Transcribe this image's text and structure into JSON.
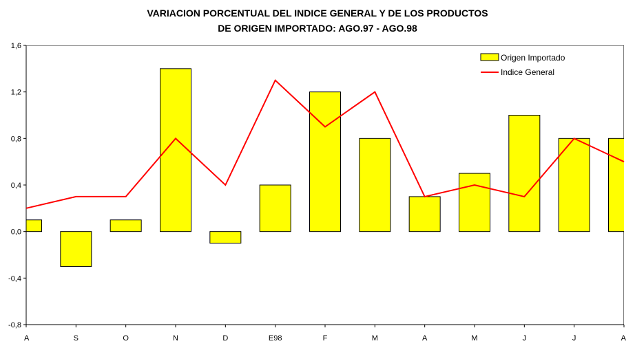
{
  "chart_data": {
    "type": "bar",
    "title_line1": "VARIACION PORCENTUAL DEL INDICE GENERAL Y DE LOS PRODUCTOS",
    "title_line2": "DE ORIGEN IMPORTADO: AGO.97 - AGO.98",
    "categories": [
      "A",
      "S",
      "O",
      "N",
      "D",
      "E98",
      "F",
      "M",
      "A",
      "M",
      "J",
      "J",
      "A"
    ],
    "ylim": [
      -0.8,
      1.6
    ],
    "yticks": [
      "-0,8",
      "-0,4",
      "0,0",
      "0,4",
      "0,8",
      "1,2",
      "1,6"
    ],
    "ytick_values": [
      -0.8,
      -0.4,
      0.0,
      0.4,
      0.8,
      1.2,
      1.6
    ],
    "grid": false,
    "legend_position": "top-right",
    "series": [
      {
        "name": "Origen Importado",
        "kind": "bar",
        "color": "#ffff00",
        "values": [
          0.1,
          -0.3,
          0.1,
          1.4,
          -0.1,
          0.4,
          1.2,
          0.8,
          0.3,
          0.5,
          1.0,
          0.8,
          0.8
        ]
      },
      {
        "name": "Indice General",
        "kind": "line",
        "color": "#ff0000",
        "values": [
          0.2,
          0.3,
          0.3,
          0.8,
          0.4,
          1.3,
          0.9,
          1.2,
          0.3,
          0.4,
          0.3,
          0.8,
          0.6
        ]
      }
    ]
  }
}
